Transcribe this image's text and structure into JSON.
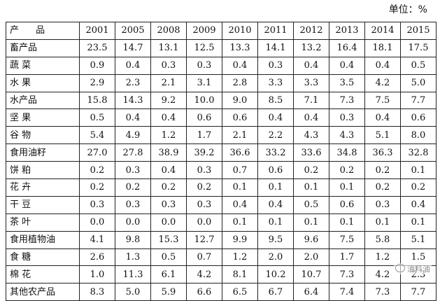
{
  "unit_label": "单位：%",
  "watermark": "油料油",
  "header": {
    "label": "产  品",
    "years": [
      "2001",
      "2005",
      "2008",
      "2009",
      "2010",
      "2011",
      "2012",
      "2013",
      "2014",
      "2015"
    ]
  },
  "rows": [
    {
      "name": "畜产品",
      "values": [
        "23.5",
        "14.7",
        "13.1",
        "12.5",
        "13.3",
        "14.1",
        "13.2",
        "16.4",
        "18.1",
        "17.5"
      ]
    },
    {
      "name": "蔬  菜",
      "values": [
        "0.9",
        "0.4",
        "0.3",
        "0.3",
        "0.4",
        "0.3",
        "0.4",
        "0.4",
        "0.4",
        "0.5"
      ]
    },
    {
      "name": "水  果",
      "values": [
        "2.9",
        "2.3",
        "2.1",
        "3.1",
        "2.8",
        "3.3",
        "3.3",
        "3.5",
        "4.2",
        "5.0"
      ]
    },
    {
      "name": "水产品",
      "values": [
        "15.8",
        "14.3",
        "9.2",
        "10.0",
        "9.0",
        "8.5",
        "7.1",
        "7.3",
        "7.5",
        "7.7"
      ]
    },
    {
      "name": "坚  果",
      "values": [
        "0.5",
        "0.4",
        "0.4",
        "0.6",
        "0.6",
        "0.4",
        "0.4",
        "0.3",
        "0.4",
        "0.6"
      ]
    },
    {
      "name": "谷  物",
      "values": [
        "5.4",
        "4.9",
        "1.2",
        "1.7",
        "2.1",
        "2.2",
        "4.3",
        "4.3",
        "5.1",
        "8.0"
      ]
    },
    {
      "name": "食用油籽",
      "values": [
        "27.0",
        "27.8",
        "38.9",
        "39.2",
        "36.6",
        "33.2",
        "33.6",
        "34.8",
        "36.3",
        "32.8"
      ]
    },
    {
      "name": "饼  粕",
      "values": [
        "0.2",
        "0.3",
        "0.4",
        "0.3",
        "0.7",
        "0.6",
        "0.2",
        "0.2",
        "0.2",
        "0.1"
      ]
    },
    {
      "name": "花  卉",
      "values": [
        "0.2",
        "0.2",
        "0.2",
        "0.2",
        "0.1",
        "0.1",
        "0.1",
        "0.1",
        "0.2",
        "0.2"
      ]
    },
    {
      "name": "干  豆",
      "values": [
        "0.3",
        "0.3",
        "0.3",
        "0.3",
        "0.4",
        "0.4",
        "0.5",
        "0.6",
        "0.3",
        "0.4"
      ]
    },
    {
      "name": "茶  叶",
      "values": [
        "0.0",
        "0.0",
        "0.0",
        "0.0",
        "0.1",
        "0.1",
        "0.1",
        "0.1",
        "0.1",
        "0.1"
      ]
    },
    {
      "name": "食用植物油",
      "values": [
        "4.1",
        "9.8",
        "15.3",
        "12.7",
        "9.9",
        "9.5",
        "9.6",
        "7.5",
        "5.8",
        "5.1"
      ]
    },
    {
      "name": "食  糖",
      "values": [
        "2.6",
        "1.3",
        "0.5",
        "0.7",
        "1.2",
        "2.0",
        "2.0",
        "1.7",
        "1.2",
        "1.5"
      ]
    },
    {
      "name": "棉  花",
      "values": [
        "1.0",
        "11.3",
        "6.1",
        "4.2",
        "8.1",
        "10.2",
        "10.7",
        "7.3",
        "4.2",
        "2.3"
      ]
    },
    {
      "name": "其他农产品",
      "values": [
        "8.3",
        "5.0",
        "5.9",
        "6.6",
        "6.5",
        "6.7",
        "6.4",
        "7.4",
        "7.3",
        "7.7"
      ]
    }
  ]
}
